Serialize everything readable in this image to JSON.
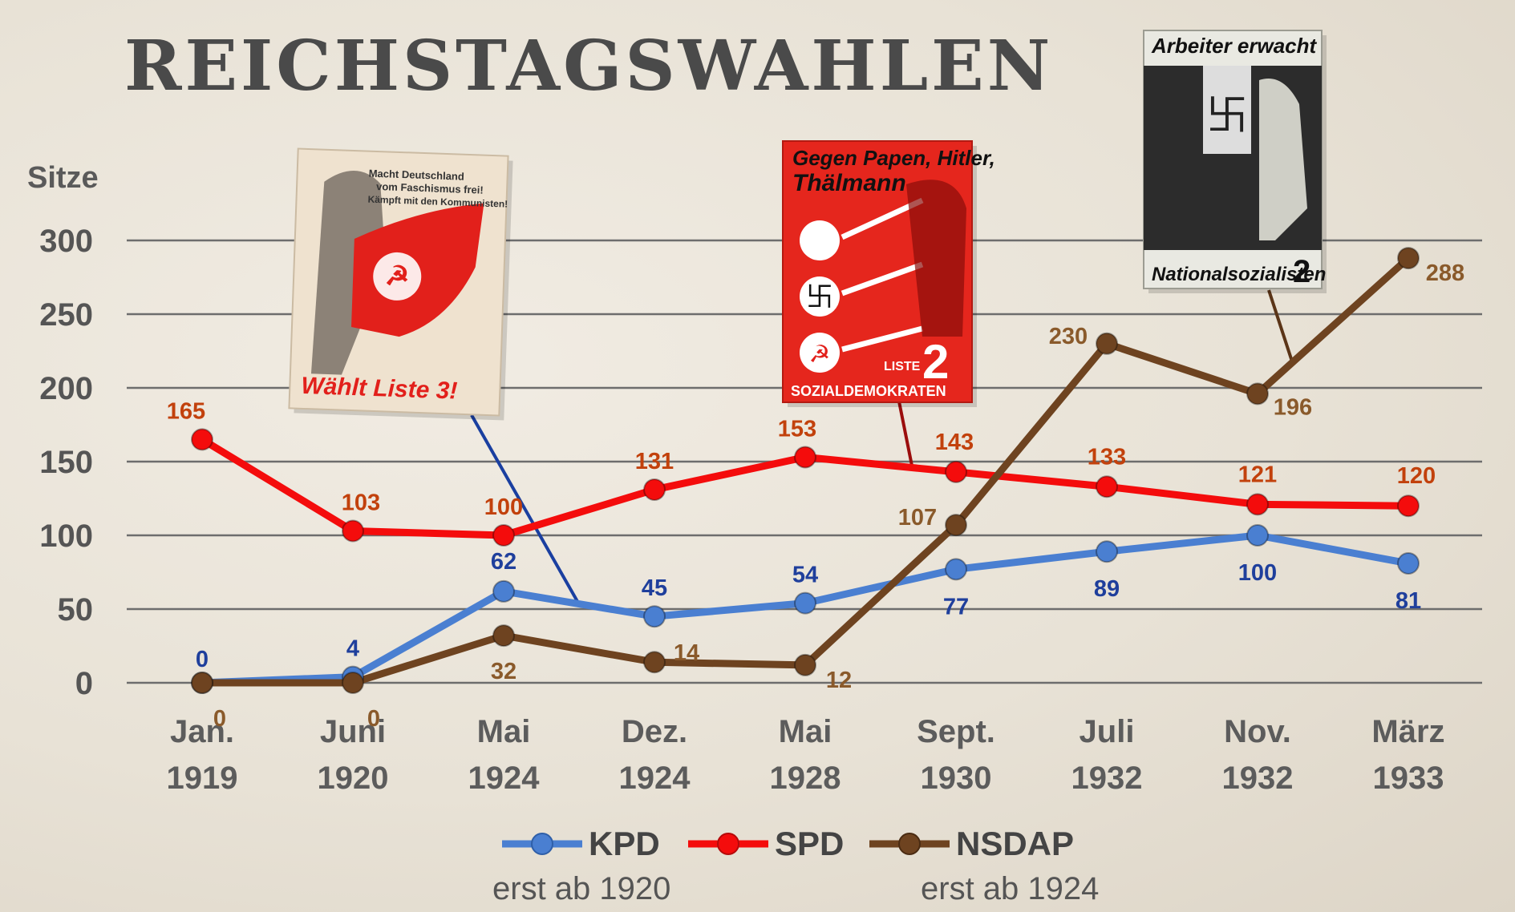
{
  "chart_data": {
    "type": "line",
    "title": "REICHSTAGSWAHLEN",
    "ylabel": "Sitze",
    "xlabel": "",
    "ylim": [
      0,
      300
    ],
    "yticks": [
      0,
      50,
      100,
      150,
      200,
      250,
      300
    ],
    "grid": true,
    "legend": "bottom",
    "categories": [
      [
        "Jan.",
        "1919"
      ],
      [
        "Juni",
        "1920"
      ],
      [
        "Mai",
        "1924"
      ],
      [
        "Dez.",
        "1924"
      ],
      [
        "Mai",
        "1928"
      ],
      [
        "Sept.",
        "1930"
      ],
      [
        "Juli",
        "1932"
      ],
      [
        "Nov.",
        "1932"
      ],
      [
        "März",
        "1933"
      ]
    ],
    "series": [
      {
        "name": "KPD",
        "color": "#4a7fd1",
        "label_color": "#1f3f9c",
        "values": [
          0,
          4,
          62,
          45,
          54,
          77,
          89,
          100,
          81
        ]
      },
      {
        "name": "SPD",
        "color": "#f40c0c",
        "label_color": "#c2410c",
        "values": [
          165,
          103,
          100,
          131,
          153,
          143,
          133,
          121,
          120
        ]
      },
      {
        "name": "NSDAP",
        "color": "#6e4320",
        "label_color": "#8a5a2b",
        "values": [
          0,
          0,
          32,
          14,
          12,
          107,
          230,
          196,
          288
        ]
      }
    ],
    "legend_notes": {
      "kpd": "erst ab 1920",
      "nsdap": "erst ab 1924"
    }
  }
}
